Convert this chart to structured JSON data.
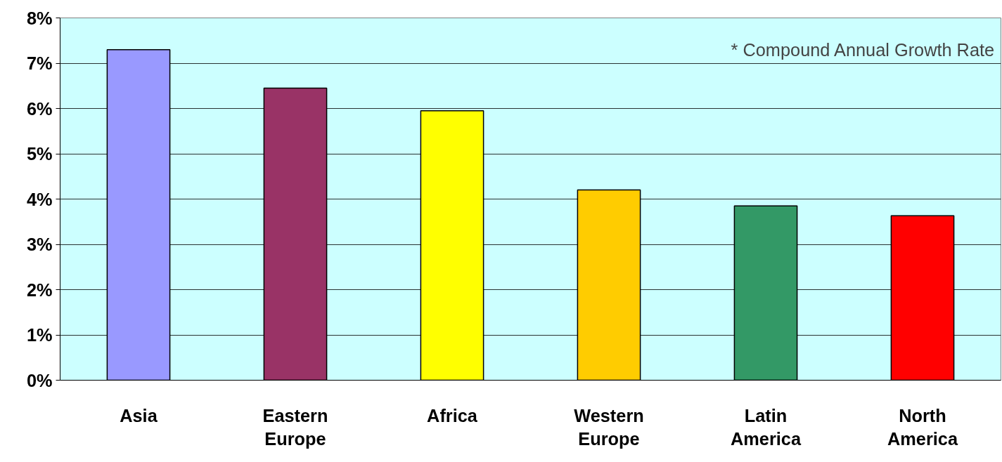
{
  "chart_data": {
    "type": "bar",
    "categories": [
      "Asia",
      "Eastern Europe",
      "Africa",
      "Western Europe",
      "Latin America",
      "North America"
    ],
    "values": [
      7.3,
      6.45,
      5.95,
      4.2,
      3.85,
      3.63
    ],
    "colors": [
      "#9999ff",
      "#993366",
      "#ffff00",
      "#ffcc00",
      "#339966",
      "#ff0000"
    ],
    "ylim": [
      0,
      8
    ],
    "yticks": [
      {
        "value": 0,
        "label": "0%"
      },
      {
        "value": 1,
        "label": "1%"
      },
      {
        "value": 2,
        "label": "2%"
      },
      {
        "value": 3,
        "label": "3%"
      },
      {
        "value": 4,
        "label": "4%"
      },
      {
        "value": 5,
        "label": "5%"
      },
      {
        "value": 6,
        "label": "6%"
      },
      {
        "value": 7,
        "label": "7%"
      },
      {
        "value": 8,
        "label": "8%"
      }
    ],
    "grid": "y",
    "annotations": [
      "* Compound Annual Growth Rate"
    ]
  }
}
